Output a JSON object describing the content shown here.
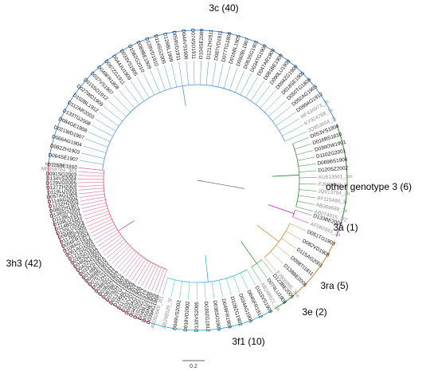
{
  "colors": {
    "3c": "#4a90d9",
    "other": "#2e8b2e",
    "3a": "#c020c0",
    "3ra": "#e0813a",
    "3e": "#2ea02e",
    "3f1": "#36b8e0",
    "3h3": "#e0507a",
    "ref": "#8c8c8c",
    "tip": "#111111",
    "branch": "#555555"
  },
  "scale_bar_label": "0.2",
  "groups": [
    {
      "id": "3c",
      "label": "3c (40)",
      "tips": [
        "D115BE1810",
        "D064SE1907",
        "D082ZH1903",
        "D066AG1904",
        "D021WD1907",
        "D084GE1908",
        "D133TG2008",
        "D112AR2003",
        "D102BL1912",
        "D027WD1909",
        "D015SO1912",
        "D037VS1907",
        "D049FR1808",
        "D067ZG1911",
        "D044JU1909",
        "D033VS1905",
        "D108ZG2010",
        "D089BE1909",
        "D128VD1910",
        "D114SG2005",
        "D126BL1909",
        "D059VD1911",
        "D044VS1906",
        "D074SO1911",
        "D104SE2009",
        "D121ZH1911",
        "D087VD1811",
        "D077TG1808",
        "D016BL1905",
        "D092BL1907",
        "D063SG1901",
        "D034TG1909",
        "D047AR1909",
        "D081BE1909",
        "D090LU1909",
        "D094ZG1909",
        "D018SE1905",
        "D050TG1808",
        "D052AG1903",
        "D099AG1912"
      ],
      "refs": [
        "MF434973_3c",
        "KY924768_3c",
        "JQ953664_3i"
      ]
    },
    {
      "id": "other",
      "label": "other genotype 3 (6)",
      "tips": [
        "D053VS1904",
        "D016BS1810",
        "D036OW1901",
        "D110ZG2001",
        "D069BS1906",
        "D120SZ2002"
      ],
      "refs": [
        "KU513561_3m",
        "FJ998008_3l",
        "JQ013794_3h",
        "AY115488_3j",
        "AB369689_3k",
        "AB074915_3f2"
      ]
    },
    {
      "id": "3a",
      "label": "3a (1)",
      "tips": [
        "D133BE2006"
      ],
      "refs": [
        "AF082843_3a"
      ]
    },
    {
      "id": "3ra",
      "label": "3ra (5)",
      "tips": [
        "D051TG1903",
        "D082VD1908",
        "D115AG2001",
        "D098TI1811",
        "D138BE2006"
      ],
      "refs": [
        "FJ906895_3ra"
      ]
    },
    {
      "id": "3e",
      "label": "3e (2)",
      "tips": [
        "D123BE2005",
        "D074LU1908"
      ],
      "refs": [
        "AB248521_3e"
      ]
    },
    {
      "id": "3f1",
      "label": "3f1 (10)",
      "tips": [
        "D103VS1909",
        "D045FR1912",
        "D034AG1906",
        "D109ZG1902",
        "D049FR1909",
        "D036SO1909",
        "D039ZG1812",
        "D130VS2005",
        "D018VD2002",
        "D049VS2003"
      ],
      "refs": [
        "AB248520_3f",
        "AF060669_3f1"
      ]
    },
    {
      "id": "3h3",
      "label": "3h3 (42)",
      "tips": [
        "D039AG1908",
        "D055NE1905",
        "D048LU1906",
        "D102SG1912",
        "D045SG1912",
        "D093AG1909",
        "D102VD1911",
        "D117ZG1909",
        "D106BL1906",
        "D013TG1806",
        "D079ZH1807",
        "D087BE1812",
        "D036ZH1807",
        "D098SG1811",
        "D027ZH1911",
        "D075TG1811",
        "D046BE1902",
        "D014BE1810",
        "D033VS1901",
        "D042ZH1901",
        "D048ZH1902",
        "D026SG1811",
        "D121ZH2002",
        "D061AG1905",
        "D108AG1912",
        "D056FR1904",
        "D117BE2002",
        "D066BL1905",
        "D125LU2004",
        "D114BS2001",
        "D109LU1912",
        "D113BL2001",
        "D138SO2004",
        "D080ZH1907",
        "D123ZH2003",
        "D114AG2002",
        "D057AG1904",
        "D119LU2003",
        "D127ZH2004",
        "D129VD2006",
        "D134VS2004",
        "D091SG2003"
      ],
      "refs": [
        "MF959764_3h3",
        "KY780957_3h"
      ]
    }
  ]
}
